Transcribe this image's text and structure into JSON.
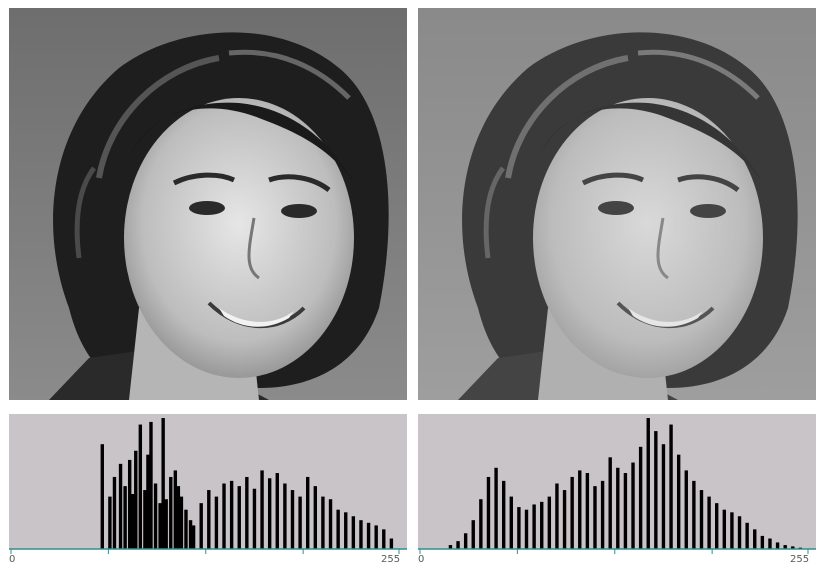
{
  "colors": {
    "background": "#ffffff",
    "histogram_panel": "#c8c4c8",
    "histogram_fill": "#000000",
    "axis_line": "#2f8f8f",
    "tick_label": "#5a5a5a"
  },
  "left_panel": {
    "icon": "portrait-photo-original",
    "tone": "high-contrast"
  },
  "right_panel": {
    "icon": "portrait-photo-equalized",
    "tone": "low-contrast"
  },
  "chart_data": [
    {
      "type": "bar",
      "xlim": [
        0,
        255
      ],
      "tick_labels": {
        "start": "0",
        "end": "255"
      },
      "x": [
        60,
        65,
        68,
        72,
        75,
        78,
        80,
        82,
        85,
        88,
        90,
        92,
        95,
        98,
        100,
        102,
        105,
        108,
        110,
        112,
        115,
        118,
        120,
        125,
        130,
        135,
        140,
        145,
        150,
        155,
        160,
        165,
        170,
        175,
        180,
        185,
        190,
        195,
        200,
        205,
        210,
        215,
        220,
        225,
        230,
        235,
        240,
        245,
        250
      ],
      "values": [
        80,
        40,
        55,
        65,
        48,
        68,
        42,
        75,
        95,
        45,
        72,
        97,
        50,
        35,
        100,
        38,
        55,
        60,
        48,
        40,
        30,
        22,
        18,
        35,
        45,
        40,
        50,
        52,
        48,
        55,
        46,
        60,
        54,
        58,
        50,
        45,
        40,
        55,
        48,
        40,
        38,
        30,
        28,
        25,
        22,
        20,
        18,
        15,
        8
      ]
    },
    {
      "type": "bar",
      "xlim": [
        0,
        255
      ],
      "tick_labels": {
        "start": "0",
        "end": "255"
      },
      "x": [
        20,
        25,
        30,
        35,
        40,
        45,
        50,
        55,
        60,
        65,
        70,
        75,
        80,
        85,
        90,
        95,
        100,
        105,
        110,
        115,
        120,
        125,
        130,
        135,
        140,
        145,
        150,
        155,
        160,
        165,
        170,
        175,
        180,
        185,
        190,
        195,
        200,
        205,
        210,
        215,
        220,
        225,
        230,
        235,
        240,
        245,
        250
      ],
      "values": [
        3,
        6,
        12,
        22,
        38,
        55,
        62,
        52,
        40,
        32,
        30,
        34,
        36,
        40,
        50,
        45,
        55,
        60,
        58,
        48,
        52,
        70,
        62,
        58,
        66,
        78,
        100,
        90,
        80,
        95,
        72,
        60,
        52,
        45,
        40,
        35,
        30,
        28,
        25,
        20,
        15,
        10,
        8,
        5,
        3,
        2,
        1
      ]
    }
  ]
}
